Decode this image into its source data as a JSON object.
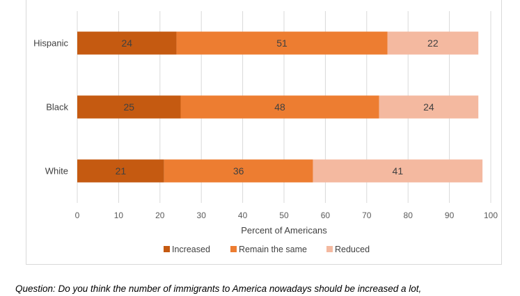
{
  "chart_data": {
    "type": "bar",
    "orientation": "horizontal",
    "stacked": true,
    "categories": [
      "Hispanic",
      "Black",
      "White"
    ],
    "series": [
      {
        "name": "Increased",
        "values": [
          24,
          25,
          21
        ],
        "color": "#c55a11"
      },
      {
        "name": "Remain the same",
        "values": [
          51,
          48,
          36
        ],
        "color": "#ed7d31"
      },
      {
        "name": "Reduced",
        "values": [
          22,
          24,
          41
        ],
        "color": "#f4b9a0"
      }
    ],
    "xlabel": "Percent of Americans",
    "xlim": [
      0,
      100
    ],
    "xticks": [
      0,
      10,
      20,
      30,
      40,
      50,
      60,
      70,
      80,
      90,
      100
    ],
    "grid": "vertical",
    "legend": "bottom"
  },
  "question": "Question: Do you think the number of immigrants to America nowadays should be increased a lot,"
}
